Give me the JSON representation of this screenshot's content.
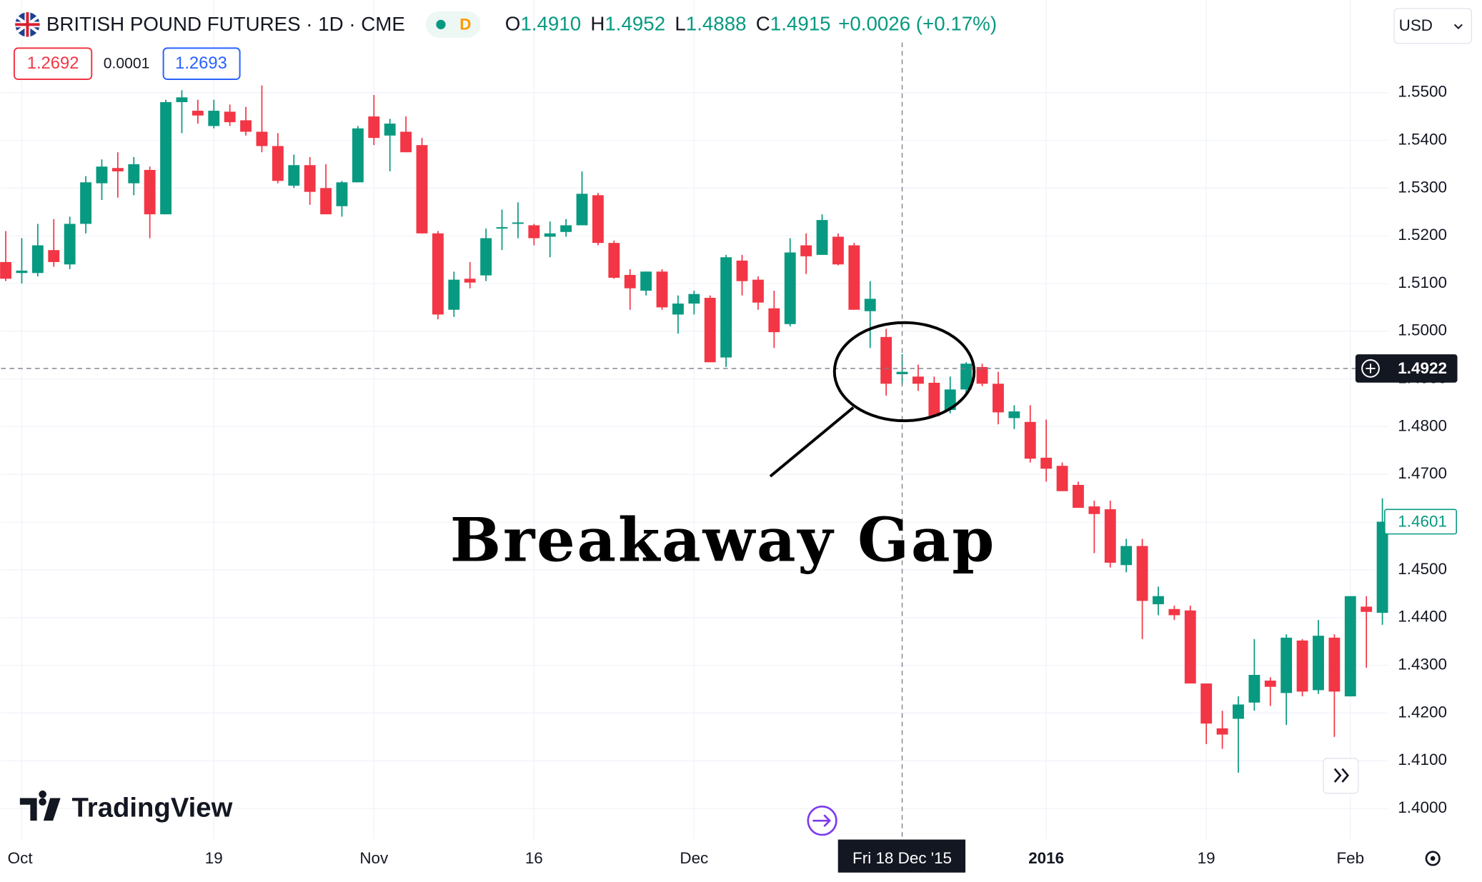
{
  "header": {
    "symbol": "BRITISH POUND FUTURES · 1D · CME",
    "badge": "D",
    "open_label": "O",
    "open": "1.4910",
    "high_label": "H",
    "high": "1.4952",
    "low_label": "L",
    "low": "1.4888",
    "close_label": "C",
    "close": "1.4915",
    "change": "+0.0026 (+0.17%)",
    "sell": "1.2692",
    "spread": "0.0001",
    "buy": "1.2693",
    "currency": "USD"
  },
  "logo": "TradingView",
  "chart_data": {
    "type": "candlestick",
    "annotation": "Breakaway Gap",
    "up_color": "#089981",
    "down_color": "#f23645",
    "categories": [
      null,
      "Oct",
      null,
      null,
      null,
      null,
      null,
      null,
      null,
      null,
      null,
      null,
      null,
      "19",
      null,
      null,
      null,
      null,
      null,
      null,
      null,
      null,
      null,
      "Nov",
      null,
      null,
      null,
      null,
      null,
      null,
      null,
      null,
      null,
      "16",
      null,
      null,
      null,
      null,
      null,
      null,
      null,
      null,
      null,
      "Dec",
      null,
      null,
      null,
      null,
      null,
      null,
      null,
      null,
      null,
      null,
      null,
      null,
      null,
      null,
      null,
      null,
      null,
      null,
      null,
      null,
      null,
      "2016",
      null,
      null,
      null,
      null,
      null,
      null,
      null,
      null,
      null,
      "19",
      null,
      null,
      null,
      null,
      null,
      null,
      null,
      null,
      "Feb",
      null,
      null
    ],
    "open": [
      1.5145,
      1.5122,
      1.5122,
      1.517,
      1.514,
      1.5225,
      1.531,
      1.5342,
      1.531,
      1.5338,
      1.5245,
      1.548,
      1.5462,
      1.543,
      1.546,
      1.5442,
      1.5418,
      1.5388,
      1.5305,
      1.5348,
      1.53,
      1.5262,
      1.5312,
      1.545,
      1.541,
      1.5418,
      1.539,
      1.5205,
      1.5045,
      1.511,
      1.5117,
      1.5215,
      1.5225,
      1.5222,
      1.5198,
      1.5208,
      1.5222,
      1.5285,
      1.5185,
      1.5118,
      1.5085,
      1.5125,
      1.5035,
      1.5058,
      1.507,
      1.4945,
      1.5148,
      1.5108,
      1.5048,
      1.5015,
      1.518,
      1.516,
      1.5198,
      1.518,
      1.5042,
      1.4988,
      1.491,
      1.4905,
      1.4892,
      1.4835,
      1.4878,
      1.4925,
      1.489,
      1.4818,
      1.481,
      1.4735,
      1.4718,
      1.4678,
      1.4633,
      1.4627,
      1.451,
      1.455,
      1.4428,
      1.4418,
      1.4415,
      1.4262,
      1.4168,
      1.4188,
      1.4222,
      1.4268,
      1.4242,
      1.4352,
      1.4248,
      1.4358,
      1.4235,
      1.4423,
      1.441
    ],
    "high": [
      1.521,
      1.5195,
      1.5225,
      1.5235,
      1.524,
      1.5325,
      1.536,
      1.5375,
      1.5365,
      1.5345,
      1.5485,
      1.5505,
      1.5485,
      1.5485,
      1.5475,
      1.547,
      1.5515,
      1.5415,
      1.537,
      1.5365,
      1.535,
      1.5315,
      1.543,
      1.5495,
      1.5445,
      1.545,
      1.5405,
      1.521,
      1.5125,
      1.5145,
      1.5215,
      1.5255,
      1.527,
      1.5225,
      1.523,
      1.5235,
      1.5335,
      1.529,
      1.519,
      1.513,
      1.5125,
      1.513,
      1.5075,
      1.5085,
      1.5075,
      1.516,
      1.516,
      1.5115,
      1.5085,
      1.5195,
      1.5205,
      1.5245,
      1.5205,
      1.5185,
      1.5105,
      1.5005,
      1.4952,
      1.493,
      1.4905,
      1.4905,
      1.4935,
      1.4932,
      1.4915,
      1.4845,
      1.4845,
      1.4815,
      1.4725,
      1.4685,
      1.4645,
      1.4645,
      1.4565,
      1.4565,
      1.4465,
      1.4425,
      1.4425,
      1.4262,
      1.4205,
      1.4235,
      1.4355,
      1.4275,
      1.4365,
      1.4355,
      1.4395,
      1.4365,
      1.4445,
      1.4445,
      1.465
    ],
    "low": [
      1.5105,
      1.51,
      1.5115,
      1.5135,
      1.513,
      1.5205,
      1.5275,
      1.528,
      1.5285,
      1.5195,
      1.5245,
      1.5415,
      1.5435,
      1.5425,
      1.543,
      1.541,
      1.5375,
      1.531,
      1.53,
      1.5265,
      1.5245,
      1.524,
      1.5312,
      1.539,
      1.5335,
      1.5375,
      1.5205,
      1.5025,
      1.503,
      1.509,
      1.5105,
      1.517,
      1.5195,
      1.518,
      1.5155,
      1.5198,
      1.5222,
      1.518,
      1.511,
      1.5045,
      1.5075,
      1.5045,
      1.4995,
      1.5035,
      1.4935,
      1.4925,
      1.5075,
      1.5045,
      1.4965,
      1.501,
      1.512,
      1.516,
      1.5138,
      1.5045,
      1.4965,
      1.4865,
      1.4888,
      1.4875,
      1.482,
      1.4828,
      1.4868,
      1.4885,
      1.4805,
      1.4795,
      1.4725,
      1.4685,
      1.4665,
      1.463,
      1.4535,
      1.4505,
      1.4495,
      1.4355,
      1.4405,
      1.4395,
      1.4262,
      1.4135,
      1.4125,
      1.4075,
      1.4205,
      1.4215,
      1.4175,
      1.4235,
      1.424,
      1.415,
      1.4235,
      1.4295,
      1.4385
    ],
    "close": [
      1.511,
      1.5127,
      1.518,
      1.5145,
      1.5225,
      1.5312,
      1.5345,
      1.5335,
      1.535,
      1.5245,
      1.548,
      1.549,
      1.5452,
      1.5462,
      1.5438,
      1.5418,
      1.5388,
      1.5315,
      1.5348,
      1.5292,
      1.5245,
      1.5312,
      1.5425,
      1.5405,
      1.5435,
      1.5375,
      1.5205,
      1.5035,
      1.5108,
      1.5102,
      1.5195,
      1.5218,
      1.5228,
      1.5195,
      1.5205,
      1.5222,
      1.5288,
      1.5185,
      1.5112,
      1.509,
      1.5125,
      1.505,
      1.5058,
      1.5078,
      1.4935,
      1.5155,
      1.5105,
      1.506,
      1.4998,
      1.5165,
      1.5157,
      1.5233,
      1.514,
      1.5045,
      1.5068,
      1.489,
      1.4915,
      1.489,
      1.4822,
      1.4878,
      1.4932,
      1.489,
      1.483,
      1.4832,
      1.4733,
      1.4712,
      1.4665,
      1.463,
      1.4617,
      1.4515,
      1.455,
      1.4435,
      1.4445,
      1.4405,
      1.4262,
      1.4178,
      1.4155,
      1.4218,
      1.428,
      1.4255,
      1.4358,
      1.4245,
      1.4362,
      1.4245,
      1.4445,
      1.4412,
      1.4601
    ],
    "ylim": [
      1.3935,
      1.5694
    ],
    "yticks": [
      {
        "value": 1.4,
        "label": "1.4000"
      },
      {
        "value": 1.41,
        "label": "1.4100"
      },
      {
        "value": 1.42,
        "label": "1.4200"
      },
      {
        "value": 1.43,
        "label": "1.4300"
      },
      {
        "value": 1.44,
        "label": "1.4400"
      },
      {
        "value": 1.45,
        "label": "1.4500"
      },
      {
        "value": 1.46,
        "label": "1.4600"
      },
      {
        "value": 1.47,
        "label": "1.4700"
      },
      {
        "value": 1.48,
        "label": "1.4800"
      },
      {
        "value": 1.49,
        "label": "1.4900"
      },
      {
        "value": 1.5,
        "label": "1.5000"
      },
      {
        "value": 1.51,
        "label": "1.5100"
      },
      {
        "value": 1.52,
        "label": "1.5200"
      },
      {
        "value": 1.53,
        "label": "1.5300"
      },
      {
        "value": 1.54,
        "label": "1.5400"
      },
      {
        "value": 1.55,
        "label": "1.5500"
      }
    ],
    "grid": true,
    "crosshair_price": {
      "value": 1.4922,
      "label": "1.4922"
    },
    "crosshair_date": "Fri 18 Dec '15",
    "last_price": {
      "value": 1.4601,
      "label": "1.4601"
    }
  }
}
